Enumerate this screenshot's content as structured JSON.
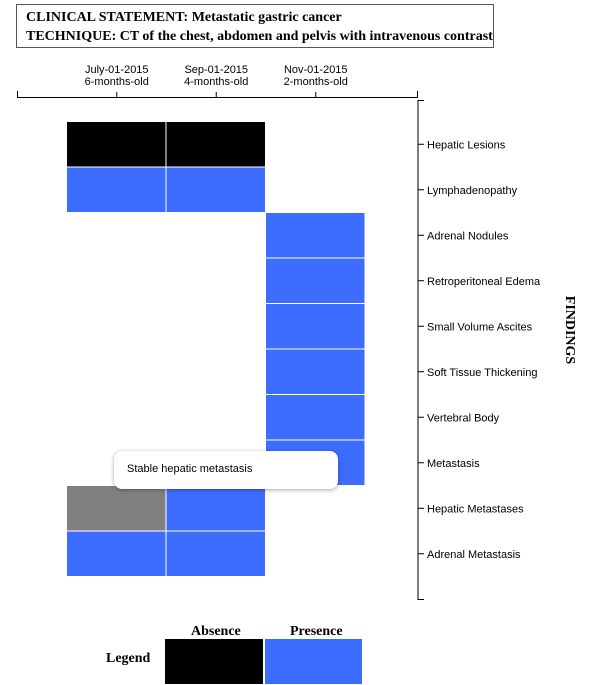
{
  "header": {
    "statement": "CLINICAL STATEMENT: Metastatic gastric cancer",
    "technique": "TECHNIQUE: CT of the chest, abdomen and pelvis with intravenous contrast"
  },
  "colors": {
    "absence": "#000000",
    "presence": "#3d6dff",
    "stable": "#808080"
  },
  "tooltip": {
    "text": "Stable hepatic metastasis"
  },
  "legend": {
    "title": "Legend",
    "absence": "Absence",
    "presence": "Presence"
  },
  "chart_data": {
    "type": "heatmap",
    "ylabel": "FINDINGS",
    "x": [
      {
        "date": "July-01-2015",
        "age": "6-months-old"
      },
      {
        "date": "Sep-01-2015",
        "age": "4-months-old"
      },
      {
        "date": "Nov-01-2015",
        "age": "2-months-old"
      }
    ],
    "findings": [
      "Hepatic Lesions",
      "Lymphadenopathy",
      "Adrenal Nodules",
      "Retroperitoneal Edema",
      "Small Volume Ascites",
      "Soft Tissue Thickening",
      "Vertebral Body",
      "Metastasis",
      "Hepatic Metastases",
      "Adrenal Metastasis"
    ],
    "cells": [
      {
        "finding": 0,
        "exam": 0,
        "status": "absence"
      },
      {
        "finding": 0,
        "exam": 1,
        "status": "absence"
      },
      {
        "finding": 1,
        "exam": 0,
        "status": "presence"
      },
      {
        "finding": 1,
        "exam": 1,
        "status": "presence"
      },
      {
        "finding": 2,
        "exam": 2,
        "status": "presence"
      },
      {
        "finding": 3,
        "exam": 2,
        "status": "presence"
      },
      {
        "finding": 4,
        "exam": 2,
        "status": "presence"
      },
      {
        "finding": 5,
        "exam": 2,
        "status": "presence"
      },
      {
        "finding": 6,
        "exam": 2,
        "status": "presence"
      },
      {
        "finding": 7,
        "exam": 2,
        "status": "presence"
      },
      {
        "finding": 8,
        "exam": 0,
        "status": "stable"
      },
      {
        "finding": 8,
        "exam": 1,
        "status": "presence"
      },
      {
        "finding": 9,
        "exam": 0,
        "status": "presence"
      },
      {
        "finding": 9,
        "exam": 1,
        "status": "presence"
      }
    ]
  }
}
